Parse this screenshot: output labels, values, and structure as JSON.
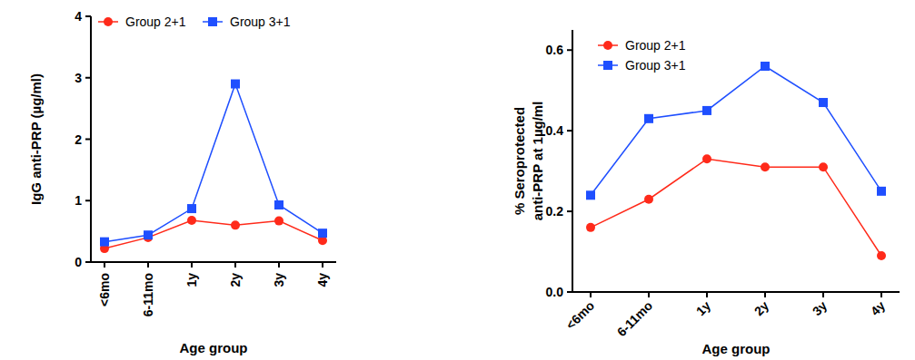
{
  "chart_data": [
    {
      "type": "line",
      "y_label": [
        "IgG anti-PRP (µg/ml)"
      ],
      "x_label": "Age group",
      "categories": [
        "<6mo",
        "6-11mo",
        "1y",
        "2y",
        "3y",
        "4y"
      ],
      "series": [
        {
          "name": "Group 2+1",
          "color": "#ff2a1a",
          "marker": "circle",
          "values": [
            0.22,
            0.4,
            0.68,
            0.6,
            0.67,
            0.35
          ]
        },
        {
          "name": "Group 3+1",
          "color": "#1f4fff",
          "marker": "square",
          "values": [
            0.33,
            0.44,
            0.87,
            2.9,
            0.93,
            0.47
          ]
        }
      ],
      "ylim": [
        0,
        4
      ],
      "yticks": [
        0,
        1,
        2,
        3,
        4
      ],
      "legend": "top"
    },
    {
      "type": "line",
      "y_label": [
        "% Seroprotected",
        "anti-PRP at 1µg/ml"
      ],
      "x_label": "Age group",
      "categories": [
        "<6mo",
        "6-11mo",
        "1y",
        "2y",
        "3y",
        "4y"
      ],
      "series": [
        {
          "name": "Group 2+1",
          "color": "#ff2a1a",
          "marker": "circle",
          "values": [
            0.16,
            0.23,
            0.33,
            0.31,
            0.31,
            0.09
          ]
        },
        {
          "name": "Group 3+1",
          "color": "#1f4fff",
          "marker": "square",
          "values": [
            0.24,
            0.43,
            0.45,
            0.56,
            0.47,
            0.25
          ]
        }
      ],
      "ylim": [
        0,
        0.65
      ],
      "yticks": [
        {
          "value": 0,
          "label": "0.0"
        },
        0.2,
        0.4,
        0.6
      ],
      "legend": "upper left"
    }
  ]
}
